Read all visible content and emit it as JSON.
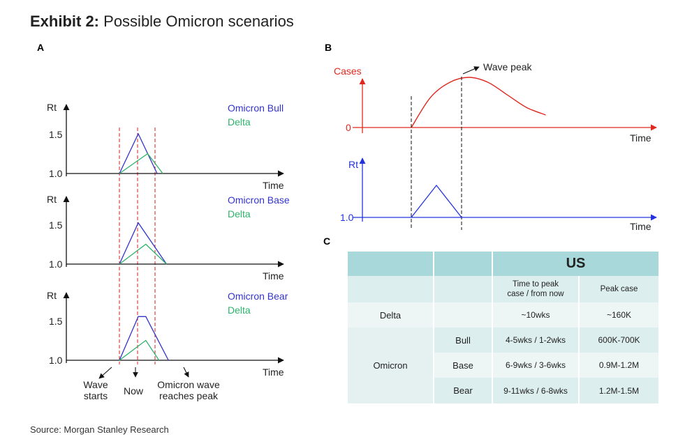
{
  "header": {
    "exhibit_label": "Exhibit 2:",
    "title": "Possible Omicron scenarios"
  },
  "source": "Source: Morgan Stanley Research",
  "colors": {
    "bull": "#3333cc",
    "delta": "#2db36b",
    "cases": "#e0281e",
    "rt_blue": "#2233dd",
    "grid_red": "#e03030",
    "table_head": "#a9d8db"
  },
  "chart_data": [
    {
      "panel": "A",
      "type": "line",
      "x_axis_label": "Time",
      "y_axis_label": "Rt",
      "y_ticks": [
        "1.5",
        "1.0"
      ],
      "event_labels": [
        "Wave starts",
        "Now",
        "Omicron wave reaches peak"
      ],
      "event_labels_display": [
        [
          "Wave",
          "starts"
        ],
        [
          "Now"
        ],
        [
          "Omicron wave",
          "reaches peak"
        ]
      ],
      "subplots": [
        {
          "scenario": "Omicron Bull",
          "series": [
            {
              "name": "Omicron Bull",
              "x": [
                0,
                1,
                2
              ],
              "y": [
                1.0,
                1.5,
                1.0
              ]
            },
            {
              "name": "Delta",
              "x": [
                0,
                1.5,
                2.3
              ],
              "y": [
                1.0,
                1.25,
                1.0
              ]
            }
          ]
        },
        {
          "scenario": "Omicron Base",
          "series": [
            {
              "name": "Omicron Base",
              "x": [
                0,
                1,
                2.5
              ],
              "y": [
                1.0,
                1.52,
                1.0
              ]
            },
            {
              "name": "Delta",
              "x": [
                0,
                1.4,
                2.5
              ],
              "y": [
                1.0,
                1.25,
                1.0
              ]
            }
          ]
        },
        {
          "scenario": "Omicron Bear",
          "series": [
            {
              "name": "Omicron Bear",
              "x": [
                0,
                1,
                1.4,
                2.6
              ],
              "y": [
                1.0,
                1.55,
                1.55,
                1.0
              ]
            },
            {
              "name": "Delta",
              "x": [
                0,
                1.4,
                2.1
              ],
              "y": [
                1.0,
                1.25,
                1.0
              ]
            }
          ]
        }
      ]
    },
    {
      "panel": "B",
      "type": "line",
      "top_plot": {
        "y_label": "Cases",
        "zero_label": "0",
        "x_label": "Time",
        "annotation": "Wave peak",
        "series": {
          "name": "Cases",
          "x": [
            0,
            0.5,
            1,
            1.5,
            2,
            2.5,
            3,
            3.5
          ],
          "y": [
            0,
            0.6,
            0.9,
            1.0,
            0.9,
            0.65,
            0.4,
            0.25
          ]
        }
      },
      "bottom_plot": {
        "y_label": "Rt",
        "y_tick": "1.0",
        "x_label": "Time",
        "series": {
          "name": "Rt",
          "x": [
            0,
            0.5,
            1
          ],
          "y": [
            1.0,
            1.5,
            1.0
          ]
        }
      }
    },
    {
      "panel": "C",
      "type": "table",
      "header_top": "US",
      "columns": [
        "Time to peak case / from now",
        "Peak case"
      ],
      "column_lines": [
        [
          "Time to peak",
          "case / from now"
        ],
        [
          "Peak case"
        ]
      ],
      "rows": [
        {
          "variant": "Delta",
          "scenario": "",
          "time_to_peak": "~10wks",
          "peak_case": "~160K"
        },
        {
          "variant": "Omicron",
          "scenario": "Bull",
          "time_to_peak": "4-5wks / 1-2wks",
          "peak_case": "600K-700K"
        },
        {
          "variant": "Omicron",
          "scenario": "Base",
          "time_to_peak": "6-9wks / 3-6wks",
          "peak_case": "0.9M-1.2M"
        },
        {
          "variant": "Omicron",
          "scenario": "Bear",
          "time_to_peak": "9-11wks / 6-8wks",
          "peak_case": "1.2M-1.5M"
        }
      ]
    }
  ]
}
